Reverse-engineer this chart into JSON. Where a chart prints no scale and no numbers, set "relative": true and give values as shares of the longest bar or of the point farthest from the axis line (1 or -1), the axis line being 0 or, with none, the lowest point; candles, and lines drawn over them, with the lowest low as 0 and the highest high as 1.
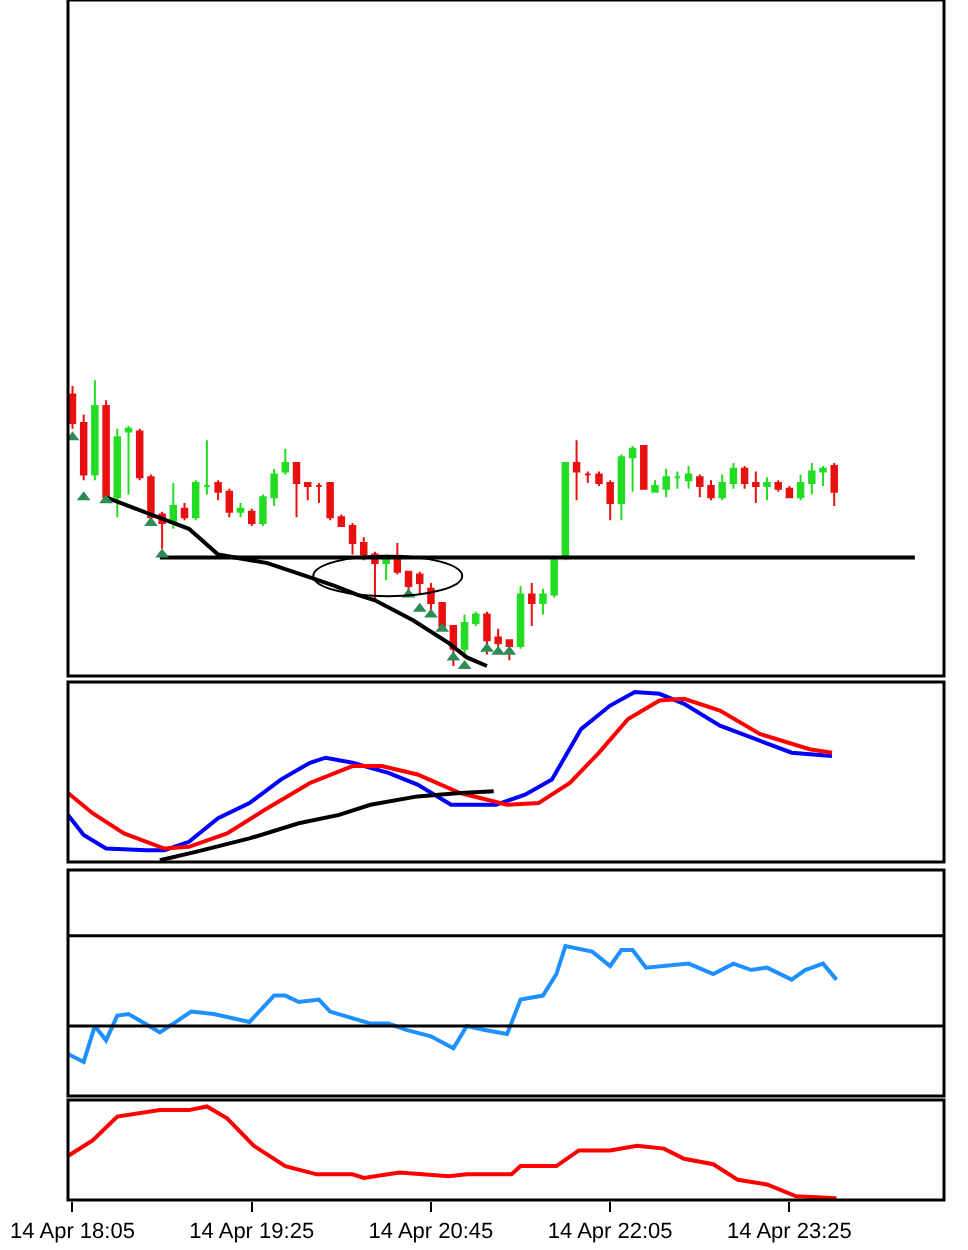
{
  "chart_data": [
    {
      "type": "candlestick",
      "relative": true,
      "tick_labels": false,
      "xlim": [
        "--04-14T18:03",
        "--04-15T00:34"
      ],
      "x": [
        "--04-14T18:05",
        "--04-14T18:10",
        "--04-14T18:15",
        "--04-14T18:20",
        "--04-14T18:25",
        "--04-14T18:30",
        "--04-14T18:35",
        "--04-14T18:40",
        "--04-14T18:45",
        "--04-14T18:50",
        "--04-14T18:55",
        "--04-14T19:00",
        "--04-14T19:05",
        "--04-14T19:10",
        "--04-14T19:15",
        "--04-14T19:20",
        "--04-14T19:25",
        "--04-14T19:30",
        "--04-14T19:35",
        "--04-14T19:40",
        "--04-14T19:45",
        "--04-14T19:50",
        "--04-14T19:55",
        "--04-14T20:00",
        "--04-14T20:05",
        "--04-14T20:10",
        "--04-14T20:15",
        "--04-14T20:20",
        "--04-14T20:25",
        "--04-14T20:30",
        "--04-14T20:35",
        "--04-14T20:40",
        "--04-14T20:45",
        "--04-14T20:50",
        "--04-14T20:55",
        "--04-14T21:00",
        "--04-14T21:05",
        "--04-14T21:10",
        "--04-14T21:15",
        "--04-14T21:20",
        "--04-14T21:25",
        "--04-14T21:30",
        "--04-14T21:35",
        "--04-14T21:40",
        "--04-14T21:45",
        "--04-14T21:50",
        "--04-14T21:55",
        "--04-14T22:00",
        "--04-14T22:05",
        "--04-14T22:10",
        "--04-14T22:15",
        "--04-14T22:20",
        "--04-14T22:25",
        "--04-14T22:30",
        "--04-14T22:35",
        "--04-14T22:40",
        "--04-14T22:45",
        "--04-14T22:50",
        "--04-14T22:55",
        "--04-14T23:00",
        "--04-14T23:05",
        "--04-14T23:10",
        "--04-14T23:15",
        "--04-14T23:20",
        "--04-14T23:25",
        "--04-14T23:30",
        "--04-14T23:35",
        "--04-14T23:40",
        "--04-14T23:45"
      ],
      "ohlc": [
        [
          0.95,
          0.98,
          0.83,
          0.85
        ],
        [
          0.85,
          0.88,
          0.65,
          0.67
        ],
        [
          0.67,
          1.0,
          0.65,
          0.91
        ],
        [
          0.91,
          0.93,
          0.58,
          0.59
        ],
        [
          0.59,
          0.83,
          0.52,
          0.8
        ],
        [
          0.82,
          0.84,
          0.6,
          0.83
        ],
        [
          0.82,
          0.83,
          0.65,
          0.66
        ],
        [
          0.66,
          0.67,
          0.51,
          0.52
        ],
        [
          0.53,
          0.54,
          0.41,
          0.5
        ],
        [
          0.5,
          0.64,
          0.48,
          0.56
        ],
        [
          0.55,
          0.57,
          0.51,
          0.52
        ],
        [
          0.52,
          0.65,
          0.51,
          0.64
        ],
        [
          0.63,
          0.79,
          0.6,
          0.63
        ],
        [
          0.64,
          0.65,
          0.58,
          0.61
        ],
        [
          0.61,
          0.62,
          0.52,
          0.54
        ],
        [
          0.54,
          0.57,
          0.52,
          0.55
        ],
        [
          0.54,
          0.55,
          0.49,
          0.5
        ],
        [
          0.5,
          0.6,
          0.49,
          0.59
        ],
        [
          0.59,
          0.69,
          0.56,
          0.67
        ],
        [
          0.68,
          0.76,
          0.67,
          0.71
        ],
        [
          0.71,
          0.71,
          0.52,
          0.64
        ],
        [
          0.64,
          0.64,
          0.58,
          0.63
        ],
        [
          0.63,
          0.64,
          0.57,
          0.63
        ],
        [
          0.64,
          0.64,
          0.51,
          0.52
        ],
        [
          0.52,
          0.53,
          0.49,
          0.49
        ],
        [
          0.49,
          0.5,
          0.39,
          0.43
        ],
        [
          0.43,
          0.45,
          0.37,
          0.39
        ],
        [
          0.39,
          0.4,
          0.23,
          0.36
        ],
        [
          0.36,
          0.39,
          0.3,
          0.38
        ],
        [
          0.38,
          0.43,
          0.32,
          0.33
        ],
        [
          0.33,
          0.33,
          0.26,
          0.28
        ],
        [
          0.32,
          0.33,
          0.25,
          0.29
        ],
        [
          0.27,
          0.29,
          0.19,
          0.22
        ],
        [
          0.22,
          0.22,
          0.13,
          0.14
        ],
        [
          0.14,
          0.14,
          0.0,
          0.06
        ],
        [
          0.06,
          0.18,
          0.04,
          0.15
        ],
        [
          0.15,
          0.19,
          0.14,
          0.18
        ],
        [
          0.18,
          0.19,
          0.04,
          0.09
        ],
        [
          0.1,
          0.13,
          0.05,
          0.08
        ],
        [
          0.09,
          0.09,
          0.02,
          0.07
        ],
        [
          0.07,
          0.28,
          0.06,
          0.25
        ],
        [
          0.25,
          0.29,
          0.14,
          0.22
        ],
        [
          0.22,
          0.27,
          0.18,
          0.25
        ],
        [
          0.25,
          0.38,
          0.24,
          0.37
        ],
        [
          0.38,
          0.71,
          0.37,
          0.71
        ],
        [
          0.71,
          0.79,
          0.58,
          0.68
        ],
        [
          0.67,
          0.68,
          0.64,
          0.67
        ],
        [
          0.67,
          0.68,
          0.63,
          0.64
        ],
        [
          0.64,
          0.65,
          0.51,
          0.57
        ],
        [
          0.57,
          0.74,
          0.51,
          0.73
        ],
        [
          0.73,
          0.77,
          0.61,
          0.76
        ],
        [
          0.77,
          0.77,
          0.62,
          0.62
        ],
        [
          0.61,
          0.65,
          0.61,
          0.63
        ],
        [
          0.62,
          0.69,
          0.59,
          0.66
        ],
        [
          0.66,
          0.68,
          0.62,
          0.66
        ],
        [
          0.65,
          0.7,
          0.62,
          0.67
        ],
        [
          0.66,
          0.67,
          0.59,
          0.63
        ],
        [
          0.63,
          0.65,
          0.58,
          0.59
        ],
        [
          0.59,
          0.67,
          0.58,
          0.64
        ],
        [
          0.64,
          0.71,
          0.62,
          0.69
        ],
        [
          0.69,
          0.7,
          0.62,
          0.64
        ],
        [
          0.64,
          0.68,
          0.57,
          0.63
        ],
        [
          0.63,
          0.66,
          0.58,
          0.64
        ],
        [
          0.64,
          0.65,
          0.61,
          0.62
        ],
        [
          0.62,
          0.63,
          0.59,
          0.59
        ],
        [
          0.59,
          0.67,
          0.58,
          0.64
        ],
        [
          0.64,
          0.71,
          0.6,
          0.68
        ],
        [
          0.68,
          0.7,
          0.63,
          0.69
        ],
        [
          0.7,
          0.71,
          0.56,
          0.61
        ]
      ],
      "colors": [
        "#e81010",
        "#e81010",
        "#22dd22",
        "#e81010",
        "#22dd22",
        "#22dd22",
        "#e81010",
        "#e81010",
        "#e81010",
        "#22dd22",
        "#e81010",
        "#22dd22",
        "#22dd22",
        "#e81010",
        "#e81010",
        "#22dd22",
        "#e81010",
        "#22dd22",
        "#22dd22",
        "#22dd22",
        "#e81010",
        "#e81010",
        "#e81010",
        "#e81010",
        "#e81010",
        "#e81010",
        "#e81010",
        "#e81010",
        "#22dd22",
        "#e81010",
        "#e81010",
        "#e81010",
        "#e81010",
        "#e81010",
        "#e81010",
        "#22dd22",
        "#22dd22",
        "#e81010",
        "#e81010",
        "#e81010",
        "#22dd22",
        "#e81010",
        "#22dd22",
        "#22dd22",
        "#22dd22",
        "#e81010",
        "#e81010",
        "#e81010",
        "#e81010",
        "#22dd22",
        "#22dd22",
        "#e81010",
        "#22dd22",
        "#22dd22",
        "#22dd22",
        "#22dd22",
        "#e81010",
        "#e81010",
        "#22dd22",
        "#22dd22",
        "#e81010",
        "#e81010",
        "#22dd22",
        "#e81010",
        "#e81010",
        "#22dd22",
        "#22dd22",
        "#22dd22",
        "#e81010"
      ],
      "series": [
        {
          "type": "line",
          "color": "#000000",
          "x": [
            "--04-14T18:20",
            "--04-14T18:40",
            "--04-14T18:57",
            "--04-14T19:10",
            "--04-14T19:32",
            "--04-14T19:51",
            "--04-14T20:02",
            "--04-14T20:12",
            "--04-14T20:20",
            "--04-14T20:37",
            "--04-14T20:53",
            "--04-14T21:01",
            "--04-14T21:10"
          ],
          "values": [
            0.59,
            0.53,
            0.48,
            0.39,
            0.36,
            0.31,
            0.28,
            0.25,
            0.23,
            0.16,
            0.08,
            0.03,
            0.0
          ]
        },
        {
          "type": "line",
          "color": "#000000",
          "x": [
            "--04-14T18:44",
            "--04-15T00:21"
          ],
          "values": [
            0.38,
            0.38
          ]
        },
        {
          "type": "scatter",
          "marker": "triangle",
          "color": "#2e8b57",
          "x": [
            "--04-14T18:05",
            "--04-14T18:10",
            "--04-14T18:20",
            "--04-14T18:40",
            "--04-14T18:45",
            "--04-14T20:35",
            "--04-14T20:40",
            "--04-14T20:45",
            "--04-14T20:50",
            "--04-14T20:55",
            "--04-14T21:00",
            "--04-14T21:10",
            "--04-14T21:15",
            "--04-14T21:20"
          ],
          "values": [
            0.8,
            0.59,
            0.58,
            0.5,
            0.39,
            0.25,
            0.2,
            0.18,
            0.13,
            0.03,
            0.0,
            0.06,
            0.05,
            0.05
          ]
        }
      ]
    },
    {
      "type": "line",
      "relative": true,
      "tick_labels": false,
      "xlim": [
        "--04-14T18:03",
        "--04-15T00:34"
      ],
      "series": [
        {
          "color": "#0000ff",
          "x": [
            "--04-14T18:03",
            "--04-14T18:10",
            "--04-14T18:20",
            "--04-14T18:38",
            "--04-14T18:46",
            "--04-14T18:57",
            "--04-14T19:10",
            "--04-14T19:24",
            "--04-14T19:38",
            "--04-14T19:51",
            "--04-14T19:58",
            "--04-14T20:10",
            "--04-14T20:26",
            "--04-14T20:39",
            "--04-14T20:54",
            "--04-14T21:14",
            "--04-14T21:27",
            "--04-14T21:39",
            "--04-14T21:52",
            "--04-14T22:05",
            "--04-14T22:16",
            "--04-14T22:27",
            "--04-14T22:38",
            "--04-14T22:54",
            "--04-14T23:10",
            "--04-14T23:26",
            "--04-14T23:44"
          ],
          "values": [
            0.27,
            0.15,
            0.07,
            0.06,
            0.06,
            0.11,
            0.25,
            0.34,
            0.48,
            0.58,
            0.61,
            0.58,
            0.52,
            0.45,
            0.33,
            0.33,
            0.39,
            0.48,
            0.78,
            0.92,
            1.0,
            0.99,
            0.93,
            0.8,
            0.72,
            0.64,
            0.62
          ]
        },
        {
          "color": "#ff0000",
          "x": [
            "--04-14T18:03",
            "--04-14T18:14",
            "--04-14T18:28",
            "--04-14T18:46",
            "--04-14T18:57",
            "--04-14T19:14",
            "--04-14T19:32",
            "--04-14T19:51",
            "--04-14T20:10",
            "--04-14T20:23",
            "--04-14T20:39",
            "--04-14T20:58",
            "--04-14T21:19",
            "--04-14T21:33",
            "--04-14T21:47",
            "--04-14T22:00",
            "--04-14T22:13",
            "--04-14T22:27",
            "--04-14T22:38",
            "--04-14T22:54",
            "--04-14T23:12",
            "--04-14T23:34",
            "--04-14T23:44"
          ],
          "values": [
            0.4,
            0.28,
            0.16,
            0.07,
            0.08,
            0.16,
            0.31,
            0.46,
            0.56,
            0.56,
            0.51,
            0.4,
            0.33,
            0.34,
            0.46,
            0.64,
            0.84,
            0.95,
            0.96,
            0.89,
            0.75,
            0.66,
            0.64
          ]
        },
        {
          "color": "#000000",
          "x": [
            "--04-14T18:44",
            "--04-14T19:00",
            "--04-14T19:24",
            "--04-14T19:46",
            "--04-14T20:04",
            "--04-14T20:18",
            "--04-14T20:39",
            "--04-14T20:58",
            "--04-14T21:13"
          ],
          "values": [
            0.0,
            0.05,
            0.13,
            0.22,
            0.27,
            0.33,
            0.38,
            0.4,
            0.41
          ]
        }
      ]
    },
    {
      "type": "line",
      "relative": true,
      "tick_labels": false,
      "xlim": [
        "--04-14T18:03",
        "--04-15T00:34"
      ],
      "series": [
        {
          "color": "#1e90ff",
          "x": [
            "--04-14T18:03",
            "--04-14T18:10",
            "--04-14T18:15",
            "--04-14T18:20",
            "--04-14T18:25",
            "--04-14T18:30",
            "--04-14T18:44",
            "--04-14T18:50",
            "--04-14T18:58",
            "--04-14T19:08",
            "--04-14T19:24",
            "--04-14T19:35",
            "--04-14T19:40",
            "--04-14T19:46",
            "--04-14T19:55",
            "--04-14T20:00",
            "--04-14T20:18",
            "--04-14T20:26",
            "--04-14T20:34",
            "--04-14T20:45",
            "--04-14T20:55",
            "--04-14T21:01",
            "--04-14T21:09",
            "--04-14T21:19",
            "--04-14T21:25",
            "--04-14T21:35",
            "--04-14T21:41",
            "--04-14T21:45",
            "--04-14T21:57",
            "--04-14T22:05",
            "--04-14T22:10",
            "--04-14T22:15",
            "--04-14T22:21",
            "--04-14T22:40",
            "--04-14T22:51",
            "--04-14T23:00",
            "--04-14T23:08",
            "--04-14T23:15",
            "--04-14T23:26",
            "--04-14T23:32",
            "--04-14T23:40",
            "--04-14T23:46"
          ],
          "values": [
            -0.35,
            -0.45,
            0.0,
            -0.18,
            0.13,
            0.15,
            -0.08,
            0.03,
            0.18,
            0.15,
            0.05,
            0.38,
            0.38,
            0.3,
            0.33,
            0.18,
            0.03,
            0.03,
            -0.05,
            -0.13,
            -0.28,
            0.0,
            -0.05,
            -0.1,
            0.33,
            0.38,
            0.65,
            1.0,
            0.93,
            0.75,
            0.95,
            0.95,
            0.73,
            0.78,
            0.65,
            0.78,
            0.7,
            0.73,
            0.58,
            0.7,
            0.78,
            0.58
          ]
        }
      ],
      "ref_lines": [
        {
          "axis": "y",
          "value": 1.13,
          "color": "#000000"
        },
        {
          "axis": "y",
          "value": 0,
          "color": "#000000"
        }
      ]
    },
    {
      "type": "line",
      "relative": true,
      "tick_labels": "x",
      "xlim": [
        "--04-14T18:03",
        "--04-15T00:34"
      ],
      "xticks": [
        {
          "value": "--04-14T18:05",
          "label": "14 Apr 18:05"
        },
        {
          "value": "--04-14T19:25",
          "label": "14 Apr 19:25"
        },
        {
          "value": "--04-14T20:45",
          "label": "14 Apr 20:45"
        },
        {
          "value": "--04-14T22:05",
          "label": "14 Apr 22:05"
        },
        {
          "value": "--04-14T23:25",
          "label": "14 Apr 23:25"
        }
      ],
      "series": [
        {
          "color": "#ff0000",
          "x": [
            "--04-14T18:03",
            "--04-14T18:14",
            "--04-14T18:25",
            "--04-14T18:44",
            "--04-14T18:57",
            "--04-14T19:05",
            "--04-14T19:14",
            "--04-14T19:26",
            "--04-14T19:40",
            "--04-14T19:54",
            "--04-14T20:10",
            "--04-14T20:15",
            "--04-14T20:31",
            "--04-14T20:53",
            "--04-14T21:01",
            "--04-14T21:21",
            "--04-14T21:25",
            "--04-14T21:41",
            "--04-14T21:51",
            "--04-14T22:05",
            "--04-14T22:17",
            "--04-14T22:29",
            "--04-14T22:38",
            "--04-14T22:51",
            "--04-14T23:02",
            "--04-14T23:15",
            "--04-14T23:28",
            "--04-14T23:46"
          ],
          "values": [
            0.46,
            0.63,
            0.89,
            0.96,
            0.96,
            1.0,
            0.87,
            0.57,
            0.35,
            0.26,
            0.26,
            0.22,
            0.28,
            0.24,
            0.26,
            0.26,
            0.35,
            0.35,
            0.52,
            0.52,
            0.57,
            0.54,
            0.43,
            0.37,
            0.2,
            0.15,
            0.02,
            0.0
          ]
        }
      ]
    }
  ]
}
